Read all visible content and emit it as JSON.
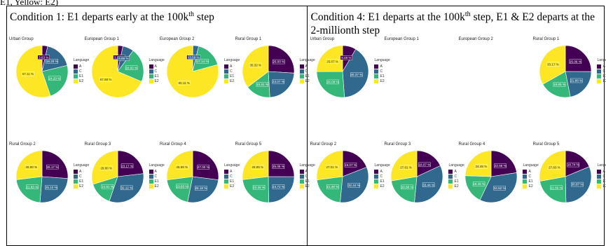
{
  "top_caption": "E1, Yellow: E2)",
  "colors": {
    "A": "#440154",
    "C": "#31688e",
    "E1": "#35b779",
    "E2": "#fde725"
  },
  "legend_title": "Language",
  "legend_items": [
    "A",
    "C",
    "E1",
    "E2"
  ],
  "conditions": [
    {
      "caption_pre": "Condition 1: E1 departs early at the 100k",
      "caption_sup": "th",
      "caption_post": " step"
    },
    {
      "caption_pre": "Condition 4: E1 departs at the 100k",
      "caption_sup": "th",
      "caption_post": " step, E1 & E2 departs at the 2-millionth step"
    }
  ],
  "chart_data": [
    {
      "type": "pie",
      "condition": 1,
      "title": "Urban Group",
      "categories": [
        "A",
        "C",
        "E1",
        "E2"
      ],
      "values": [
        3.63,
        18.29,
        24.2,
        57.11
      ],
      "labels": [
        "3.63 %",
        "18.29 %",
        "24.20 %",
        "57.11 %"
      ]
    },
    {
      "type": "pie",
      "condition": 1,
      "title": "European Group 1",
      "categories": [
        "A",
        "C",
        "E1",
        "E2"
      ],
      "values": [
        3.22,
        6.89,
        20.93,
        67.98
      ],
      "labels": [
        "3.22 %",
        "6.89 %",
        "20.93 %",
        "67.98 %"
      ]
    },
    {
      "type": "pie",
      "condition": 1,
      "title": "European Group 2",
      "categories": [
        "A",
        "C",
        "E1",
        "E2"
      ],
      "values": [
        0.18,
        3.59,
        17.14,
        80.11
      ],
      "labels": [
        "0.18 %",
        "3.59 %",
        "17.14 %",
        "80.11 %"
      ]
    },
    {
      "type": "pie",
      "condition": 1,
      "title": "Rural Group 1",
      "categories": [
        "A",
        "C",
        "E1",
        "E2"
      ],
      "values": [
        26.0,
        23.07,
        15.61,
        35.32
      ],
      "labels": [
        "26.00 %",
        "23.07 %",
        "15.61 %",
        "35.32 %"
      ]
    },
    {
      "type": "pie",
      "condition": 1,
      "title": "Rural Group 2",
      "categories": [
        "A",
        "C",
        "E1",
        "E2"
      ],
      "values": [
        26.17,
        25.1,
        21.83,
        26.9
      ],
      "labels": [
        "26.17 %",
        "25.10 %",
        "21.83 %",
        "26.90 %"
      ]
    },
    {
      "type": "pie",
      "condition": 1,
      "title": "Rural Group 3",
      "categories": [
        "A",
        "C",
        "E1",
        "E2"
      ],
      "values": [
        23.17,
        32.12,
        14.91,
        29.8
      ],
      "labels": [
        "23.17 %",
        "32.12 %",
        "14.91 %",
        "29.80 %"
      ]
    },
    {
      "type": "pie",
      "condition": 1,
      "title": "Rural Group 4",
      "categories": [
        "A",
        "C",
        "E1",
        "E2"
      ],
      "values": [
        27.0,
        26.18,
        19.83,
        26.99
      ],
      "labels": [
        "27.00 %",
        "26.18 %",
        "19.83 %",
        "26.99 %"
      ]
    },
    {
      "type": "pie",
      "condition": 1,
      "title": "Rural Group 5",
      "categories": [
        "A",
        "C",
        "E1",
        "E2"
      ],
      "values": [
        25.05,
        24.72,
        23.38,
        26.85
      ],
      "labels": [
        "25.05 %",
        "24.72 %",
        "23.38 %",
        "26.85 %"
      ]
    },
    {
      "type": "pie",
      "condition": 4,
      "title": "Urban Group",
      "categories": [
        "A",
        "C",
        "E1",
        "E2"
      ],
      "values": [
        8.48,
        40.37,
        26.08,
        25.07
      ],
      "labels": [
        "8.48 %",
        "40.37 %",
        "26.08 %",
        "25.07 %"
      ]
    },
    {
      "type": "pie",
      "condition": 4,
      "title": "European Group 1",
      "categories": [],
      "values": [],
      "labels": []
    },
    {
      "type": "pie",
      "condition": 4,
      "title": "European Group 2",
      "categories": [],
      "values": [],
      "labels": []
    },
    {
      "type": "pie",
      "condition": 4,
      "title": "Rural Group 1",
      "categories": [
        "A",
        "C",
        "E1",
        "E2"
      ],
      "values": [
        25.06,
        21.88,
        19.89,
        33.17
      ],
      "labels": [
        "25.06 %",
        "21.88 %",
        "19.89 %",
        "33.17 %"
      ]
    },
    {
      "type": "pie",
      "condition": 4,
      "title": "Rural Group 2",
      "categories": [
        "A",
        "C",
        "E1",
        "E2"
      ],
      "values": [
        19.07,
        32.44,
        21.48,
        27.01
      ],
      "labels": [
        "19.07 %",
        "32.44 %",
        "21.48 %",
        "27.01 %"
      ]
    },
    {
      "type": "pie",
      "condition": 4,
      "title": "Rural Group 3",
      "categories": [
        "A",
        "C",
        "E1",
        "E2"
      ],
      "values": [
        18.07,
        33.44,
        20.88,
        27.61
      ],
      "labels": [
        "18.07 %",
        "33.44 %",
        "20.88 %",
        "27.61 %"
      ]
    },
    {
      "type": "pie",
      "condition": 4,
      "title": "Rural Group 4",
      "categories": [
        "A",
        "C",
        "E1",
        "E2"
      ],
      "values": [
        22.58,
        34.52,
        18.45,
        24.45
      ],
      "labels": [
        "22.58 %",
        "34.52 %",
        "18.45 %",
        "24.45 %"
      ]
    },
    {
      "type": "pie",
      "condition": 4,
      "title": "Rural Group 5",
      "categories": [
        "A",
        "C",
        "E1",
        "E2"
      ],
      "values": [
        18.74,
        30.87,
        22.56,
        27.83
      ],
      "labels": [
        "18.74 %",
        "30.87 %",
        "22.56 %",
        "27.83 %"
      ]
    }
  ]
}
